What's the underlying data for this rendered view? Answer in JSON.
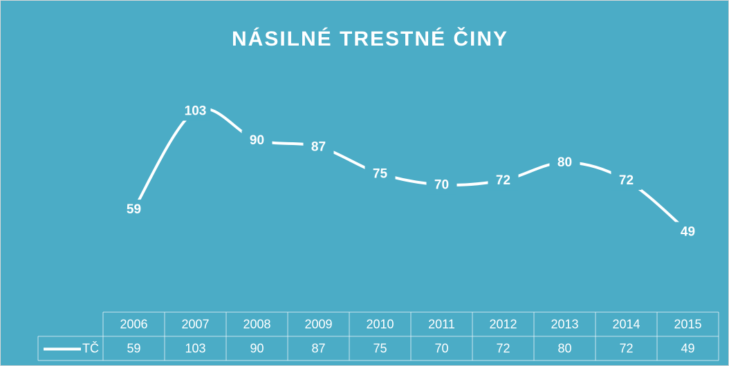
{
  "chart_data": {
    "type": "line",
    "title": "NÁSILNÉ TRESTNÉ ČINY",
    "categories": [
      "2006",
      "2007",
      "2008",
      "2009",
      "2010",
      "2011",
      "2012",
      "2013",
      "2014",
      "2015"
    ],
    "series": [
      {
        "name": "TČ",
        "color": "#ffffff",
        "values": [
          59,
          103,
          90,
          87,
          75,
          70,
          72,
          80,
          72,
          49
        ]
      }
    ],
    "ylim": [
      13,
      110
    ],
    "data_table": true,
    "drop_lines": true
  }
}
